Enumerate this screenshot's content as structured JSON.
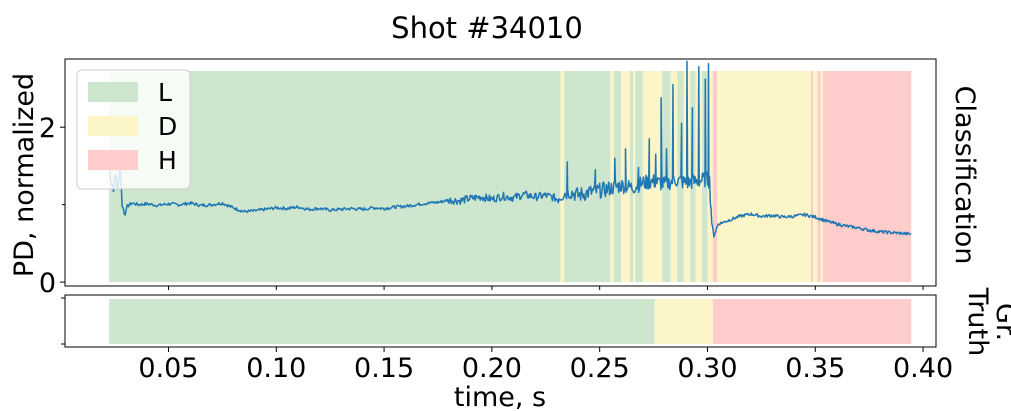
{
  "chart_data": [
    {
      "type": "line",
      "title": "Shot #34010",
      "ylabel": "PD, normalized",
      "right_label": "Classification",
      "xlim": [
        0.002,
        0.406
      ],
      "ylim": [
        -0.05,
        2.88
      ],
      "yticks": [
        0,
        2
      ],
      "legend": {
        "placement": "top-left",
        "entries": [
          {
            "label": "L",
            "color": "#cde6cd"
          },
          {
            "label": "D",
            "color": "#fcf5c7"
          },
          {
            "label": "H",
            "color": "#ffcccc"
          }
        ]
      },
      "background_spans": [
        {
          "class": "L",
          "x0": 0.0225,
          "x1": 0.2318
        },
        {
          "class": "D",
          "x0": 0.2318,
          "x1": 0.2335
        },
        {
          "class": "L",
          "x0": 0.2335,
          "x1": 0.255
        },
        {
          "class": "D",
          "x0": 0.255,
          "x1": 0.2565
        },
        {
          "class": "L",
          "x0": 0.2565,
          "x1": 0.26
        },
        {
          "class": "D",
          "x0": 0.26,
          "x1": 0.264
        },
        {
          "class": "L",
          "x0": 0.264,
          "x1": 0.2655
        },
        {
          "class": "D",
          "x0": 0.2655,
          "x1": 0.2665
        },
        {
          "class": "L",
          "x0": 0.2665,
          "x1": 0.27
        },
        {
          "class": "D",
          "x0": 0.27,
          "x1": 0.279
        },
        {
          "class": "L",
          "x0": 0.279,
          "x1": 0.283
        },
        {
          "class": "D",
          "x0": 0.283,
          "x1": 0.286
        },
        {
          "class": "L",
          "x0": 0.286,
          "x1": 0.289
        },
        {
          "class": "D",
          "x0": 0.289,
          "x1": 0.292
        },
        {
          "class": "L",
          "x0": 0.292,
          "x1": 0.2945
        },
        {
          "class": "D",
          "x0": 0.2945,
          "x1": 0.2975
        },
        {
          "class": "L",
          "x0": 0.2975,
          "x1": 0.3
        },
        {
          "class": "D",
          "x0": 0.3,
          "x1": 0.3025
        },
        {
          "class": "H",
          "x0": 0.3025,
          "x1": 0.3045
        },
        {
          "class": "D",
          "x0": 0.3045,
          "x1": 0.348
        },
        {
          "class": "H",
          "x0": 0.348,
          "x1": 0.349
        },
        {
          "class": "D",
          "x0": 0.349,
          "x1": 0.351
        },
        {
          "class": "H",
          "x0": 0.351,
          "x1": 0.3525
        },
        {
          "class": "D",
          "x0": 0.3525,
          "x1": 0.3535
        },
        {
          "class": "H",
          "x0": 0.3535,
          "x1": 0.3945
        }
      ],
      "series": [
        {
          "color": "#1f77b4",
          "points": [
            [
              0.0225,
              1.45
            ],
            [
              0.0235,
              1.28
            ],
            [
              0.0245,
              1.22
            ],
            [
              0.0255,
              1.38
            ],
            [
              0.0265,
              1.18
            ],
            [
              0.0275,
              1.52
            ],
            [
              0.0285,
              1.02
            ],
            [
              0.0295,
              0.88
            ],
            [
              0.031,
              0.98
            ],
            [
              0.033,
              1.02
            ],
            [
              0.036,
              1.0
            ],
            [
              0.04,
              1.01
            ],
            [
              0.045,
              0.99
            ],
            [
              0.05,
              1.01
            ],
            [
              0.055,
              1.0
            ],
            [
              0.06,
              1.02
            ],
            [
              0.065,
              0.99
            ],
            [
              0.07,
              1.0
            ],
            [
              0.075,
              1.02
            ],
            [
              0.08,
              0.96
            ],
            [
              0.085,
              0.91
            ],
            [
              0.09,
              0.92
            ],
            [
              0.095,
              0.94
            ],
            [
              0.1,
              0.96
            ],
            [
              0.105,
              0.95
            ],
            [
              0.11,
              0.97
            ],
            [
              0.115,
              0.94
            ],
            [
              0.12,
              0.95
            ],
            [
              0.125,
              0.93
            ],
            [
              0.13,
              0.94
            ],
            [
              0.135,
              0.95
            ],
            [
              0.14,
              0.94
            ],
            [
              0.145,
              0.96
            ],
            [
              0.15,
              0.95
            ],
            [
              0.155,
              0.97
            ],
            [
              0.16,
              0.98
            ],
            [
              0.165,
              1.0
            ],
            [
              0.17,
              1.02
            ],
            [
              0.175,
              1.03
            ],
            [
              0.18,
              1.06
            ],
            [
              0.185,
              1.05
            ],
            [
              0.19,
              1.08
            ],
            [
              0.195,
              1.1
            ],
            [
              0.2,
              1.07
            ],
            [
              0.205,
              1.11
            ],
            [
              0.21,
              1.09
            ],
            [
              0.215,
              1.13
            ],
            [
              0.22,
              1.1
            ],
            [
              0.225,
              1.12
            ],
            [
              0.23,
              1.08
            ],
            [
              0.233,
              1.14
            ],
            [
              0.236,
              1.17
            ],
            [
              0.24,
              1.12
            ],
            [
              0.245,
              1.16
            ],
            [
              0.25,
              1.18
            ],
            [
              0.255,
              1.21
            ],
            [
              0.26,
              1.25
            ],
            [
              0.265,
              1.22
            ],
            [
              0.27,
              1.28
            ],
            [
              0.275,
              1.3
            ],
            [
              0.28,
              1.26
            ],
            [
              0.285,
              1.32
            ],
            [
              0.29,
              1.28
            ],
            [
              0.295,
              1.3
            ],
            [
              0.3,
              1.33
            ],
            [
              0.301,
              1.3
            ],
            [
              0.302,
              0.76
            ],
            [
              0.303,
              0.6
            ],
            [
              0.305,
              0.75
            ],
            [
              0.31,
              0.8
            ],
            [
              0.315,
              0.85
            ],
            [
              0.32,
              0.88
            ],
            [
              0.325,
              0.85
            ],
            [
              0.33,
              0.86
            ],
            [
              0.335,
              0.84
            ],
            [
              0.34,
              0.85
            ],
            [
              0.345,
              0.87
            ],
            [
              0.35,
              0.84
            ],
            [
              0.355,
              0.79
            ],
            [
              0.36,
              0.75
            ],
            [
              0.365,
              0.72
            ],
            [
              0.37,
              0.7
            ],
            [
              0.375,
              0.67
            ],
            [
              0.38,
              0.65
            ],
            [
              0.385,
              0.64
            ],
            [
              0.39,
              0.63
            ],
            [
              0.3945,
              0.62
            ]
          ],
          "spikes": [
            [
              0.235,
              1.55
            ],
            [
              0.248,
              1.45
            ],
            [
              0.257,
              1.6
            ],
            [
              0.262,
              1.72
            ],
            [
              0.268,
              1.48
            ],
            [
              0.273,
              1.85
            ],
            [
              0.276,
              1.65
            ],
            [
              0.2785,
              2.38
            ],
            [
              0.281,
              1.72
            ],
            [
              0.284,
              2.55
            ],
            [
              0.288,
              2.05
            ],
            [
              0.2905,
              2.85
            ],
            [
              0.293,
              2.25
            ],
            [
              0.296,
              2.78
            ],
            [
              0.299,
              2.62
            ],
            [
              0.3005,
              2.82
            ]
          ]
        }
      ]
    },
    {
      "type": "timeline",
      "right_label": "Gr. Truth",
      "xlabel": "time, s",
      "xlim": [
        0.002,
        0.406
      ],
      "xticks": [
        0.05,
        0.1,
        0.15,
        0.2,
        0.25,
        0.3,
        0.35,
        0.4
      ],
      "xtick_labels": [
        "0.05",
        "0.10",
        "0.15",
        "0.20",
        "0.25",
        "0.30",
        "0.35",
        "0.40"
      ],
      "segments": [
        {
          "class": "L",
          "x0": 0.0225,
          "x1": 0.2755
        },
        {
          "class": "D",
          "x0": 0.2755,
          "x1": 0.3025
        },
        {
          "class": "H",
          "x0": 0.3025,
          "x1": 0.3945
        }
      ]
    }
  ]
}
